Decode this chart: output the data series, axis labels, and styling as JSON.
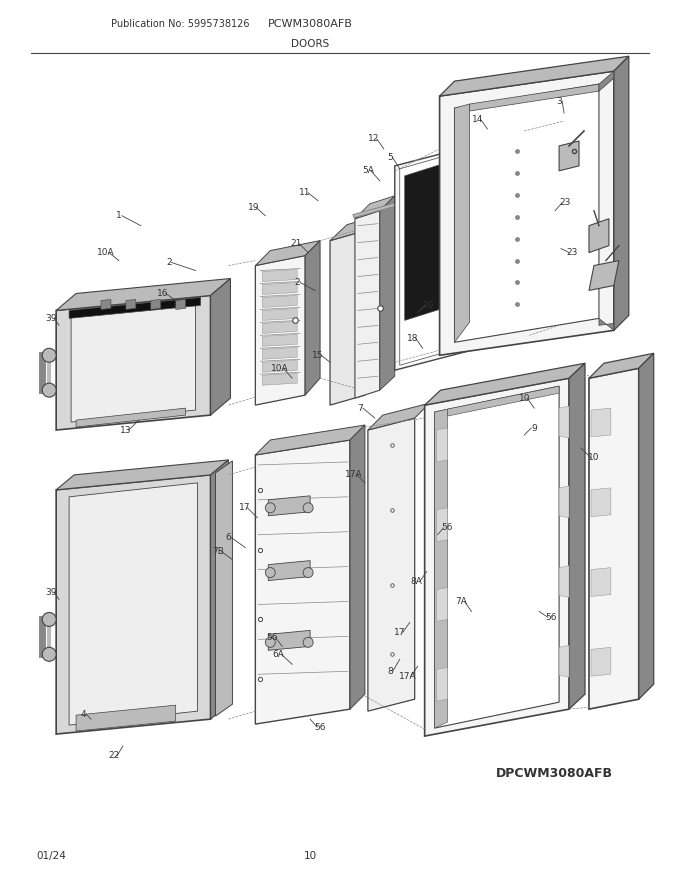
{
  "title": "PCWM3080AFB",
  "subtitle": "DOORS",
  "pub_no": "Publication No: 5995738126",
  "footer_left": "01/24",
  "footer_center": "10",
  "part_code": "DPCWM3080AFB",
  "bg_color": "#ffffff",
  "lc": "#444444",
  "tc": "#333333",
  "gray_light": "#d8d8d8",
  "gray_mid": "#bbbbbb",
  "gray_dark": "#888888",
  "black": "#111111"
}
